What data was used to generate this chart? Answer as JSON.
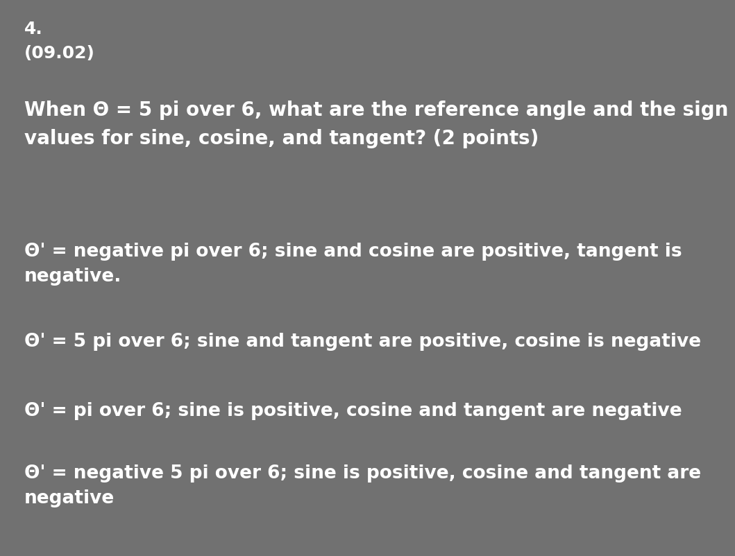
{
  "background_color": "#717171",
  "text_color": "#ffffff",
  "number": "4.",
  "subtitle": "(09.02)",
  "question": "When Θ = 5 pi over 6, what are the reference angle and the sign\nvalues for sine, cosine, and tangent? (2 points)",
  "options": [
    "Θ' = negative pi over 6; sine and cosine are positive, tangent is\nnegative.",
    "Θ' = 5 pi over 6; sine and tangent are positive, cosine is negative",
    "Θ' = pi over 6; sine is positive, cosine and tangent are negative",
    "Θ' = negative 5 pi over 6; sine is positive, cosine and tangent are\nnegative"
  ],
  "font_size_number": 18,
  "font_size_subtitle": 18,
  "font_size_question": 20,
  "font_size_options": 19,
  "fig_width": 10.28,
  "fig_height": 7.82,
  "dpi": 100
}
